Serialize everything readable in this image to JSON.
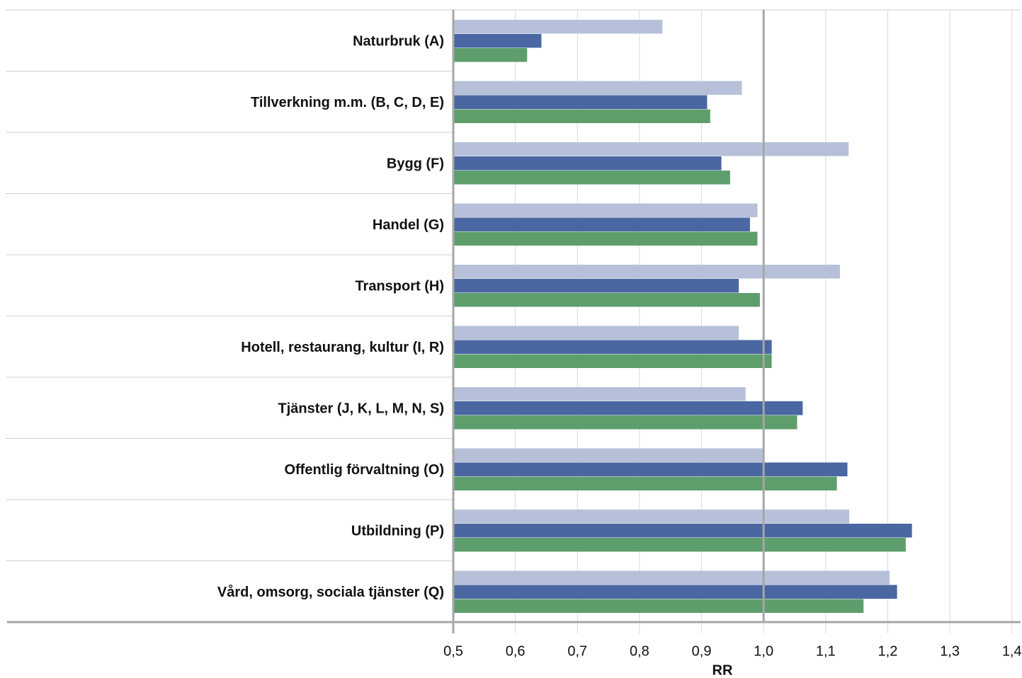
{
  "chart_data": {
    "type": "bar",
    "orientation": "horizontal",
    "x_label": "RR",
    "categories": [
      "Naturbruk (A)",
      "Tillverkning m.m. (B, C, D, E)",
      "Bygg (F)",
      "Handel (G)",
      "Transport (H)",
      "Hotell, restaurang, kultur (I, R)",
      "Tjänster (J, K, L, M, N, S)",
      "Offentlig förvaltning (O)",
      "Utbildning (P)",
      "Vård, omsorg, sociala tjänster (Q)"
    ],
    "series": [
      {
        "color": "#b6c1d9",
        "values": [
          0.837,
          0.965,
          1.137,
          0.99,
          1.123,
          0.96,
          0.971,
          1.0,
          1.138,
          1.203
        ]
      },
      {
        "color": "#4a67a1",
        "values": [
          0.642,
          0.909,
          0.932,
          0.978,
          0.96,
          1.013,
          1.063,
          1.135,
          1.239,
          1.215
        ]
      },
      {
        "color": "#5e9e6d",
        "values": [
          0.619,
          0.914,
          0.946,
          0.99,
          0.994,
          1.013,
          1.054,
          1.118,
          1.229,
          1.161
        ]
      }
    ],
    "xlim": [
      0.5,
      1.414
    ],
    "xticks": [
      {
        "value": 0.5,
        "label": "0,5"
      },
      {
        "value": 0.6,
        "label": "0,6"
      },
      {
        "value": 0.7,
        "label": "0,7"
      },
      {
        "value": 0.8,
        "label": "0,8"
      },
      {
        "value": 0.9,
        "label": "0,9"
      },
      {
        "value": 1.0,
        "label": "1,0"
      },
      {
        "value": 1.1,
        "label": "1,1"
      },
      {
        "value": 1.2,
        "label": "1,2"
      },
      {
        "value": 1.3,
        "label": "1,3"
      },
      {
        "value": 1.4,
        "label": "1,4"
      }
    ],
    "reference_line": 1.0,
    "grid": true
  }
}
